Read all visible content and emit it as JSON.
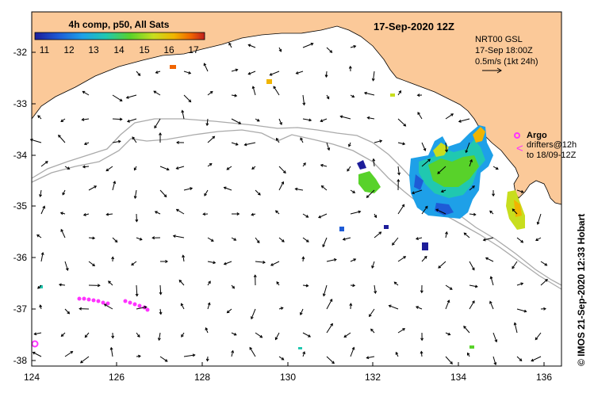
{
  "map": {
    "title": "17-Sep-2020 12Z",
    "colorbar": {
      "label": "4h comp, p50, All Sats",
      "ticks": [
        "11",
        "12",
        "13",
        "14",
        "15",
        "16",
        "17"
      ],
      "colors": [
        "#1d1d9a",
        "#1e5bd6",
        "#1ea0e8",
        "#20c8b0",
        "#58d22a",
        "#c8de1e",
        "#f0b400",
        "#f06400",
        "#c01e1e"
      ]
    },
    "current_info": {
      "line1": "NRT00 GSL",
      "line2": "17-Sep 18:00Z",
      "line3": "0.5m/s (1kt 24h)"
    },
    "argo_legend": {
      "title": "Argo",
      "line1": "drifters@12h",
      "line2": "to 18/09-12Z"
    },
    "side_label": "© IMOS 21-Sep-2020 12:33 Hobart",
    "lat_ticks": [
      "-32",
      "-33",
      "-34",
      "-35",
      "-36",
      "-37",
      "-38"
    ],
    "lon_ticks": [
      "124",
      "126",
      "128",
      "130",
      "132",
      "134",
      "136"
    ],
    "colors": {
      "land": "#fbc999",
      "contour": "#aaaaaa",
      "argo": "#ff33ff",
      "arrow": "#000000"
    }
  }
}
